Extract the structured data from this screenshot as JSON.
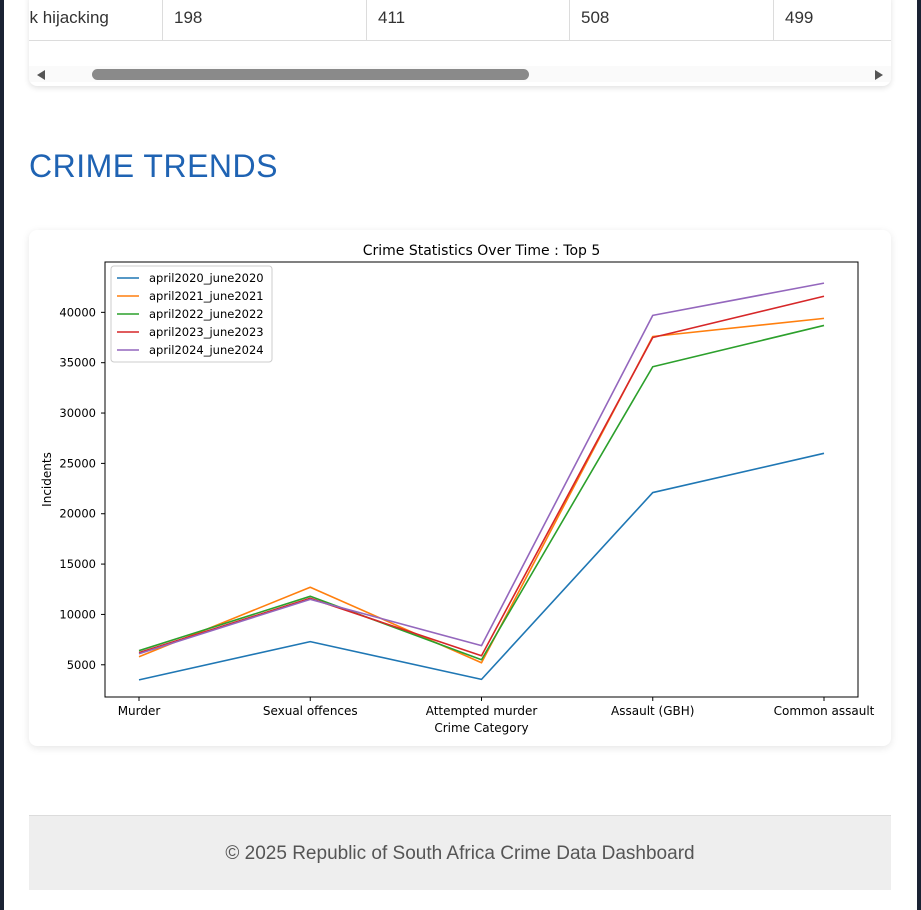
{
  "table": {
    "row": [
      "ck hijacking",
      "198",
      "411",
      "508",
      "499"
    ]
  },
  "section": {
    "title": "CRIME TRENDS"
  },
  "chart_data": {
    "type": "line",
    "title": "Crime Statistics Over Time : Top 5",
    "xlabel": "Crime Category",
    "ylabel": "Incidents",
    "categories": [
      "Murder",
      "Sexual offences",
      "Attempted murder",
      "Assault (GBH)",
      "Common assault"
    ],
    "ylim": [
      1800,
      45000
    ],
    "yticks": [
      5000,
      10000,
      15000,
      20000,
      25000,
      30000,
      35000,
      40000
    ],
    "legend_position": "upper-left",
    "series": [
      {
        "name": "april2020_june2020",
        "color": "#1f77b4",
        "values": [
          3500,
          7300,
          3550,
          22100,
          26000
        ]
      },
      {
        "name": "april2021_june2021",
        "color": "#ff7f0e",
        "values": [
          5800,
          12700,
          5200,
          37600,
          39400
        ]
      },
      {
        "name": "april2022_june2022",
        "color": "#2ca02c",
        "values": [
          6400,
          11800,
          5500,
          34600,
          38700
        ]
      },
      {
        "name": "april2023_june2023",
        "color": "#d62728",
        "values": [
          6200,
          11600,
          5900,
          37500,
          41600
        ]
      },
      {
        "name": "april2024_june2024",
        "color": "#9467bd",
        "values": [
          6100,
          11500,
          6900,
          39700,
          42900
        ]
      }
    ]
  },
  "footer": {
    "text": "© 2025 Republic of South Africa Crime Data Dashboard"
  }
}
